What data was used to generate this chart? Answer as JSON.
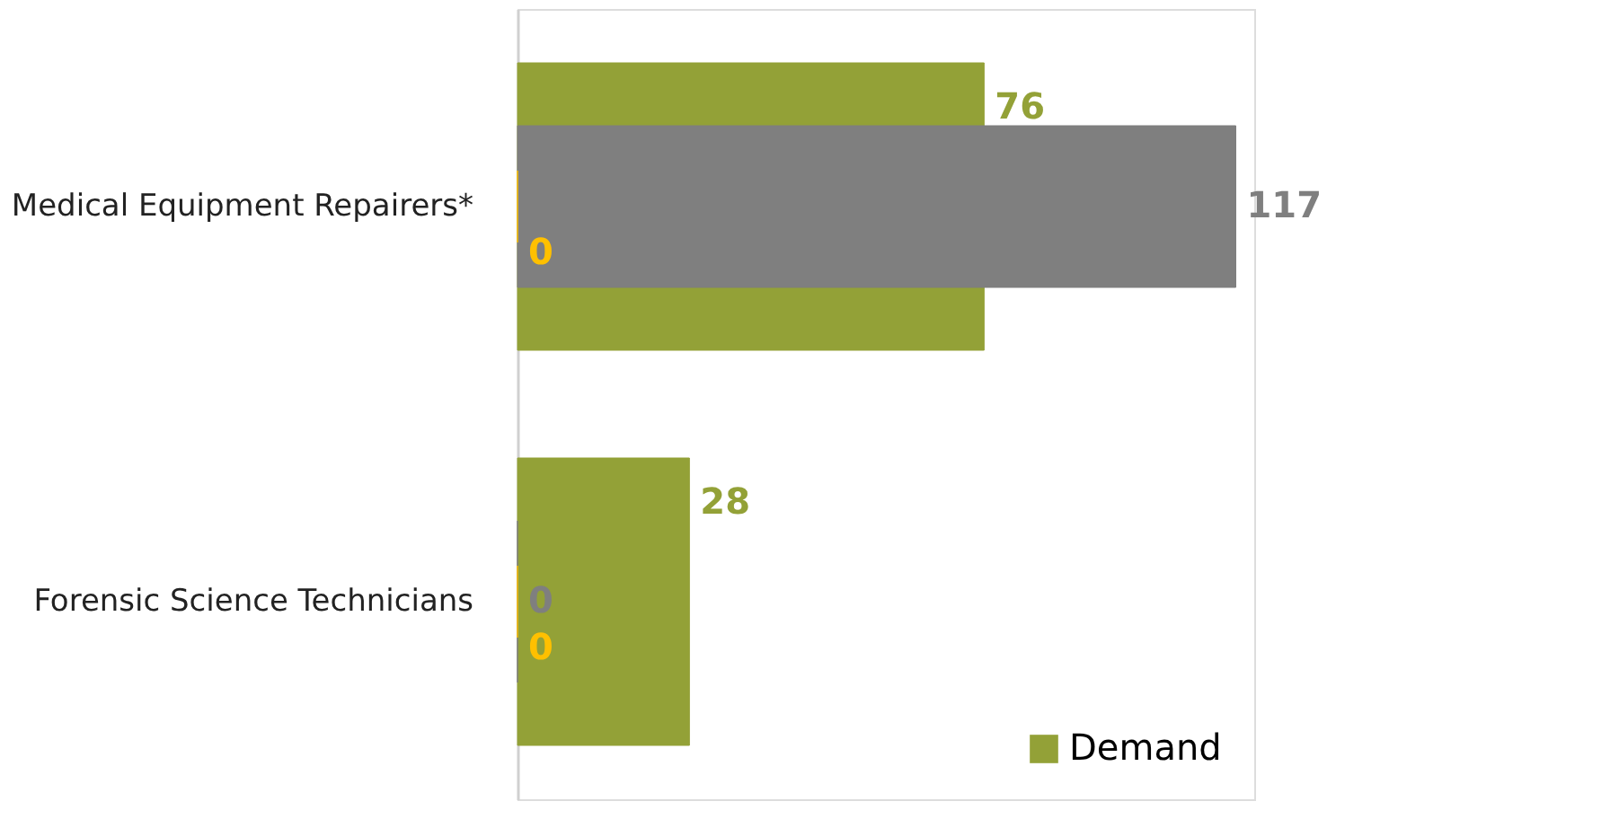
{
  "chart_data": {
    "type": "bar",
    "orientation": "horizontal",
    "categories": [
      "Medical Equipment Repairers*",
      "Forensic Science Technicians"
    ],
    "series": [
      {
        "name": "Demand",
        "color": "#93a137",
        "values": [
          76,
          28
        ]
      },
      {
        "color": "#7f7f7f",
        "values": [
          117,
          0
        ]
      },
      {
        "color": "#ffc000",
        "values": [
          0,
          0
        ]
      }
    ],
    "data_labels": true,
    "legend": "bottom right"
  }
}
